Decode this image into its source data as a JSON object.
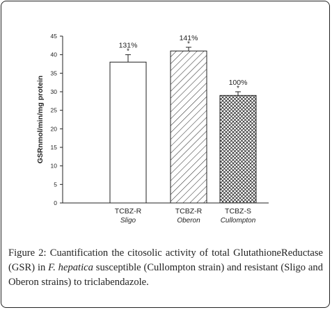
{
  "figure": {
    "caption_label": "Figure 2:",
    "caption_part1": "Cuantification the citosolic activity of total GlutathioneReductase (GSR) in ",
    "caption_species": "F. hepatica",
    "caption_part2": " susceptible (Cullompton strain) and resistant (Sligo and Oberon strains) to triclabendazole."
  },
  "chart_data": {
    "type": "bar",
    "ylabel": "GSRnmol/min/mg protein",
    "ylim": [
      0,
      45
    ],
    "yticks": [
      0,
      5,
      10,
      15,
      20,
      25,
      30,
      35,
      40,
      45
    ],
    "categories": [
      {
        "line1": "TCBZ-R",
        "line2": "Sligo"
      },
      {
        "line1": "TCBZ-R",
        "line2": "Oberon"
      },
      {
        "line1": "TCBZ-S",
        "line2": "Cullompton"
      }
    ],
    "values": [
      38,
      41,
      29
    ],
    "errors": [
      2,
      1,
      1
    ],
    "labels": [
      "131%",
      "141%",
      "100%"
    ],
    "markers": [
      "*",
      "*",
      "*"
    ],
    "fills": [
      "white",
      "diagonal-hatch",
      "cross-hatch"
    ],
    "bar_color": "#222222"
  }
}
